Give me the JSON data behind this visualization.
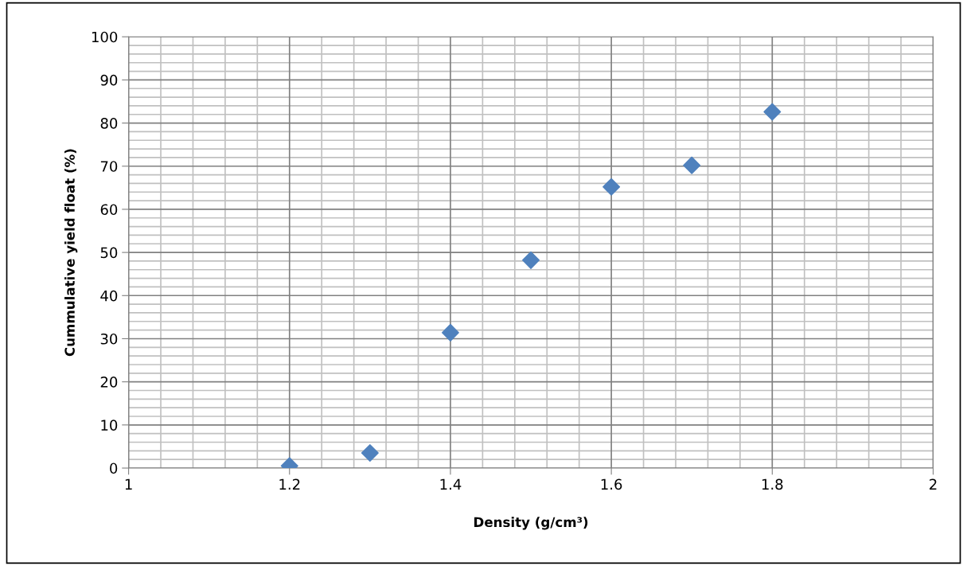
{
  "chart_data": {
    "type": "scatter",
    "xlabel": "Density (g/cm³)",
    "ylabel": "Cummulative yield float (%)",
    "x": [
      1.2,
      1.3,
      1.4,
      1.5,
      1.6,
      1.7,
      1.8
    ],
    "series": [
      {
        "color": "#4f81bd",
        "values": [
          0.5,
          3.5,
          31.4,
          48.2,
          65.2,
          70.2,
          82.6
        ]
      }
    ],
    "xlim": [
      1,
      2
    ],
    "xticks": [
      1,
      1.2,
      1.4,
      1.6,
      1.8,
      2
    ],
    "ylim": [
      0,
      100
    ],
    "yticks": [
      0,
      10,
      20,
      30,
      40,
      50,
      60,
      70,
      80,
      90,
      100
    ],
    "grid": true,
    "marker": "diamond",
    "legend": false
  }
}
